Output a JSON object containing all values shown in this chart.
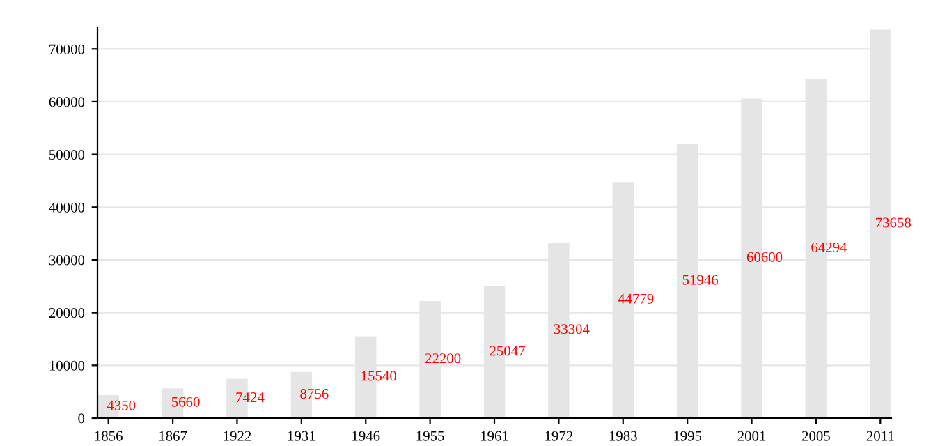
{
  "chart_data": {
    "type": "bar",
    "categories": [
      "1856",
      "1867",
      "1922",
      "1931",
      "1946",
      "1955",
      "1961",
      "1972",
      "1983",
      "1995",
      "2001",
      "2005",
      "2011"
    ],
    "values": [
      4350,
      5660,
      7424,
      8756,
      15540,
      22200,
      25047,
      33304,
      44779,
      51946,
      60600,
      64294,
      73658
    ],
    "color": "#e5e5e5",
    "data_labels": true,
    "ylim": [
      0,
      74000
    ],
    "yticks": [
      0,
      10000,
      20000,
      30000,
      40000,
      50000,
      60000,
      70000
    ],
    "grid": "y"
  }
}
